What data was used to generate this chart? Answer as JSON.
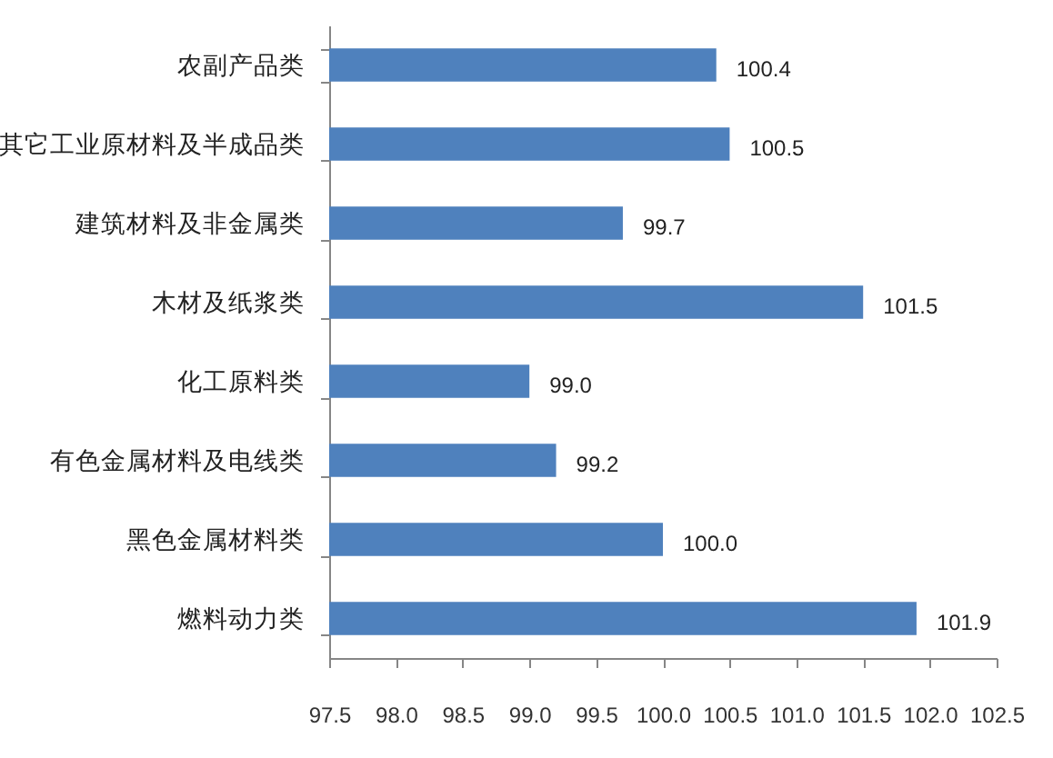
{
  "chart_data": {
    "type": "bar",
    "orientation": "horizontal",
    "categories": [
      "农副产品类",
      "其它工业原材料及半成品类",
      "建筑材料及非金属类",
      "木材及纸浆类",
      "化工原料类",
      "有色金属材料及电线类",
      "黑色金属材料类",
      "燃料动力类"
    ],
    "values": [
      100.4,
      100.5,
      99.7,
      101.5,
      99.0,
      99.2,
      100.0,
      101.9
    ],
    "value_labels": [
      "100.4",
      "100.5",
      "99.7",
      "101.5",
      "99.0",
      "99.2",
      "100.0",
      "101.9"
    ],
    "color": "#4f81bd",
    "xlim": [
      97.5,
      102.5
    ],
    "xticks": [
      97.5,
      {
        "value": 98,
        "label": "98.0"
      },
      98.5,
      {
        "value": 99,
        "label": "99.0"
      },
      99.5,
      {
        "value": 100,
        "label": "100.0"
      },
      100.5,
      {
        "value": 101,
        "label": "101.0"
      },
      101.5,
      {
        "value": 102,
        "label": "102.0"
      },
      102.5
    ],
    "grid": false
  }
}
